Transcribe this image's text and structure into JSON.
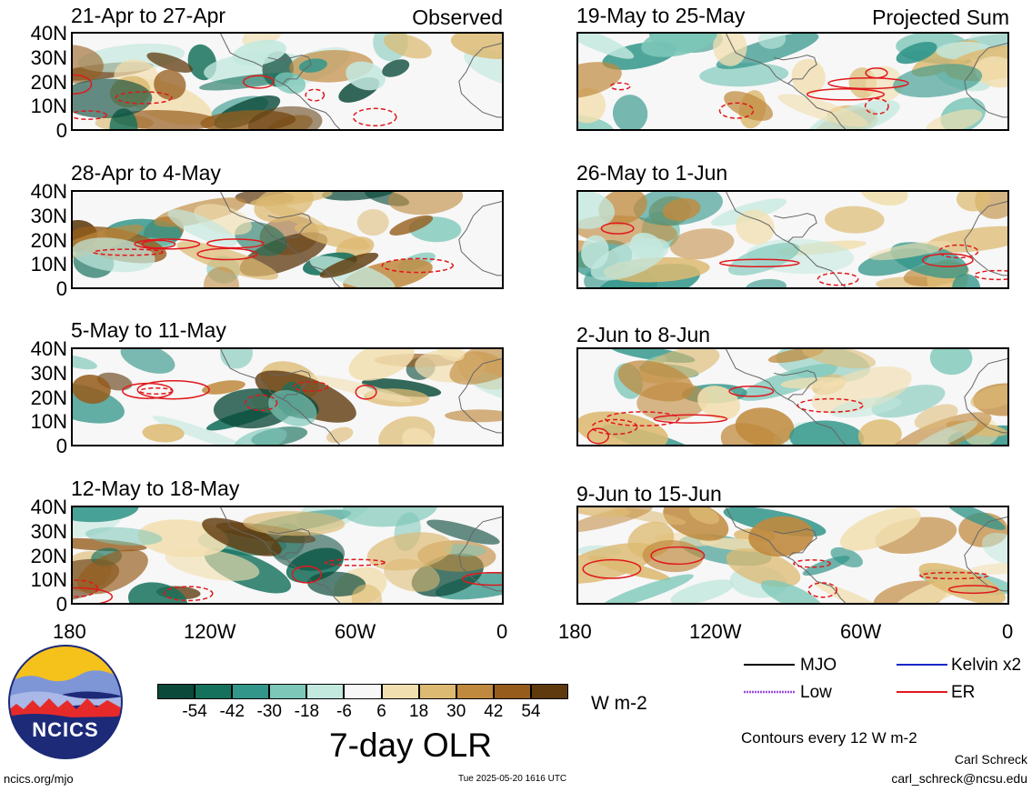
{
  "observed": {
    "tag": "Observed",
    "panels": [
      {
        "title": "21-Apr to 27-Apr"
      },
      {
        "title": "28-Apr to 4-May"
      },
      {
        "title": "5-May to 11-May"
      },
      {
        "title": "12-May to 18-May"
      }
    ]
  },
  "projected": {
    "tag": "Projected Sum",
    "panels": [
      {
        "title": "19-May to 25-May"
      },
      {
        "title": "26-May to 1-Jun"
      },
      {
        "title": "2-Jun to 8-Jun"
      },
      {
        "title": "9-Jun to 15-Jun"
      }
    ]
  },
  "axes": {
    "lat_ticks": [
      "40N",
      "30N",
      "20N",
      "10N",
      "0"
    ],
    "lon_ticks": [
      "180",
      "120W",
      "60W",
      "0"
    ]
  },
  "colorbar": {
    "labels": [
      "-54",
      "-42",
      "-30",
      "-18",
      "-6",
      "6",
      "18",
      "30",
      "42",
      "54"
    ],
    "colors": [
      "#0b4a3a",
      "#15705c",
      "#33968a",
      "#7cc7b8",
      "#c3e8de",
      "#f7f7f7",
      "#f2dfb0",
      "#ddba72",
      "#c08a3e",
      "#955c1c",
      "#5f3a0e"
    ],
    "unit": "W m-2",
    "title": "7-day OLR"
  },
  "legend": {
    "items": [
      {
        "label": "MJO",
        "color": "#000000"
      },
      {
        "label": "Kelvin x2",
        "color": "#1428c8"
      },
      {
        "label": "Low",
        "color": "#9b4dde"
      },
      {
        "label": "ER",
        "color": "#e0181c"
      }
    ],
    "contour_note": "Contours every 12 W m-2"
  },
  "logo": {
    "text": "NCICS"
  },
  "footer": {
    "url": "ncics.org/mjo",
    "timestamp": "Tue 2025-05-20 1616 UTC",
    "author": "Carl Schreck",
    "email": "carl_schreck@ncsu.edu"
  }
}
